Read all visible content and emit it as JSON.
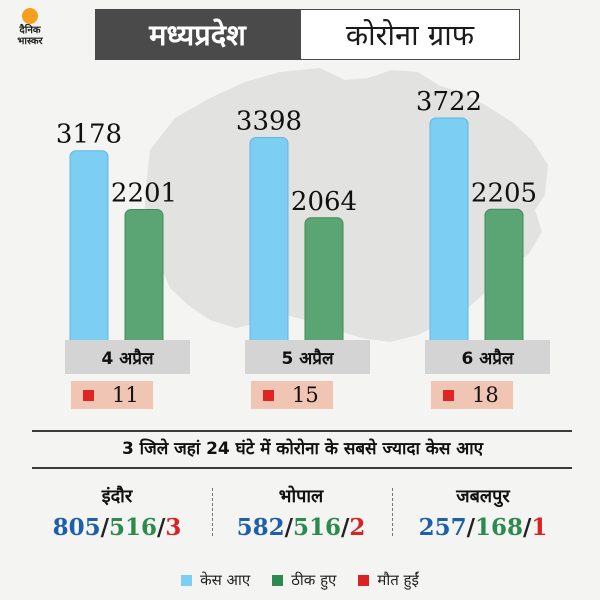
{
  "brand": {
    "line1": "दैनिक",
    "line2": "भास्कर"
  },
  "header": {
    "left": "मध्यप्रदेश",
    "right": "कोरोना ग्राफ"
  },
  "colors": {
    "cases": "#7ccff2",
    "recovered": "#5aa573",
    "deaths": "#e02424",
    "map": "#e2e2e0"
  },
  "chart_data": {
    "type": "bar",
    "categories": [
      "4 अप्रैल",
      "5 अप्रैल",
      "6 अप्रैल"
    ],
    "series": [
      {
        "name": "केस आए",
        "values": [
          3178,
          3398,
          3722
        ]
      },
      {
        "name": "ठीक हुए",
        "values": [
          2201,
          2064,
          2205
        ]
      }
    ],
    "deaths": [
      11,
      15,
      18
    ],
    "data_labels": [
      "3178",
      "2201",
      "3398",
      "2064",
      "3722",
      "2205"
    ],
    "death_labels": [
      "11",
      "15",
      "18"
    ],
    "title": "",
    "xlabel": "",
    "ylabel": "",
    "ylim": [
      0,
      4000
    ],
    "legend": "bottom",
    "grid": false
  },
  "subtitle": "3 जिले जहां 24 घंटे में कोरोना के सबसे ज्यादा केस आए",
  "cities": [
    {
      "name": "इंदौर",
      "cases": "805",
      "recovered": "516",
      "deaths": "3"
    },
    {
      "name": "भोपाल",
      "cases": "582",
      "recovered": "516",
      "deaths": "2"
    },
    {
      "name": "जबलपुर",
      "cases": "257",
      "recovered": "168",
      "deaths": "1"
    }
  ],
  "sep": "/",
  "legend": [
    {
      "label": "केस आए",
      "color": "#7ccff2"
    },
    {
      "label": "ठीक हुए",
      "color": "#2d8a4f"
    },
    {
      "label": "मौत हुईं",
      "color": "#d92323"
    }
  ]
}
